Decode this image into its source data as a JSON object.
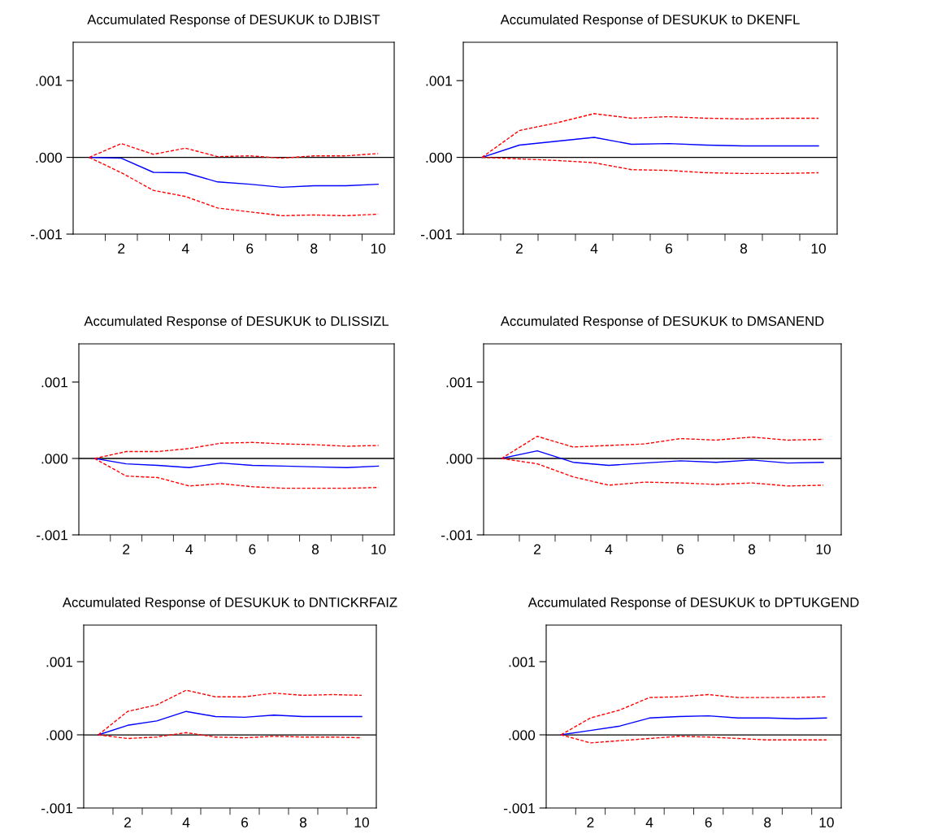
{
  "chart_data": [
    {
      "type": "line",
      "title": "Accumulated Response of DESUKUK to DJBIST",
      "categories": [
        null,
        "2",
        null,
        "4",
        null,
        "6",
        null,
        "8",
        null,
        "10"
      ],
      "ylim": [
        -0.001,
        0.0015
      ],
      "yticks": [
        {
          "value": -0.001,
          "label": "-.001"
        },
        {
          "value": 0,
          "label": ".000"
        },
        {
          "value": 0.001,
          "label": ".001"
        }
      ],
      "ref_lines": [
        {
          "axis": "y",
          "value": 0,
          "color": "#000000"
        }
      ],
      "series": [
        {
          "color": "#0000ff",
          "line_style": "solid",
          "values": [
            0,
            -1e-05,
            -0.000195,
            -0.0002,
            -0.00032,
            -0.00035,
            -0.00039,
            -0.00037,
            -0.00037,
            -0.00035
          ]
        },
        {
          "color": "#ff0000",
          "line_style": "dashed",
          "values": [
            0,
            0.00018,
            4e-05,
            0.00012,
            1e-05,
            2e-05,
            -1e-05,
            2e-05,
            2e-05,
            5e-05
          ]
        },
        {
          "color": "#ff0000",
          "line_style": "dashed",
          "values": [
            0,
            -0.0002,
            -0.00043,
            -0.00051,
            -0.00066,
            -0.00071,
            -0.00076,
            -0.00075,
            -0.00076,
            -0.00074
          ]
        }
      ]
    },
    {
      "type": "line",
      "title": "Accumulated Response of DESUKUK to DKENFL",
      "categories": [
        null,
        "2",
        null,
        "4",
        null,
        "6",
        null,
        "8",
        null,
        "10"
      ],
      "ylim": [
        -0.001,
        0.0015
      ],
      "yticks": [
        {
          "value": -0.001,
          "label": "-.001"
        },
        {
          "value": 0,
          "label": ".000"
        },
        {
          "value": 0.001,
          "label": ".001"
        }
      ],
      "ref_lines": [
        {
          "axis": "y",
          "value": 0,
          "color": "#000000"
        }
      ],
      "series": [
        {
          "color": "#0000ff",
          "line_style": "solid",
          "values": [
            0,
            0.00016,
            0.00021,
            0.00026,
            0.00017,
            0.00018,
            0.00016,
            0.00015,
            0.00015,
            0.00015
          ]
        },
        {
          "color": "#ff0000",
          "line_style": "dashed",
          "values": [
            0,
            0.00035,
            0.00045,
            0.00057,
            0.00051,
            0.00053,
            0.00051,
            0.0005,
            0.00051,
            0.00051
          ]
        },
        {
          "color": "#ff0000",
          "line_style": "dashed",
          "values": [
            0,
            -2e-05,
            -4e-05,
            -7e-05,
            -0.00016,
            -0.00017,
            -0.0002,
            -0.00021,
            -0.00021,
            -0.0002
          ]
        }
      ]
    },
    {
      "type": "line",
      "title": "Accumulated Response of DESUKUK to DLISSIZL",
      "categories": [
        null,
        "2",
        null,
        "4",
        null,
        "6",
        null,
        "8",
        null,
        "10"
      ],
      "ylim": [
        -0.001,
        0.0015
      ],
      "yticks": [
        {
          "value": -0.001,
          "label": "-.001"
        },
        {
          "value": 0,
          "label": ".000"
        },
        {
          "value": 0.001,
          "label": ".001"
        }
      ],
      "ref_lines": [
        {
          "axis": "y",
          "value": 0,
          "color": "#000000"
        }
      ],
      "series": [
        {
          "color": "#0000ff",
          "line_style": "solid",
          "values": [
            0,
            -7e-05,
            -9e-05,
            -0.00012,
            -6e-05,
            -9e-05,
            -0.0001,
            -0.00011,
            -0.00012,
            -0.0001
          ]
        },
        {
          "color": "#ff0000",
          "line_style": "dashed",
          "values": [
            0,
            9e-05,
            9e-05,
            0.00013,
            0.0002,
            0.00021,
            0.00019,
            0.00018,
            0.00016,
            0.00017
          ]
        },
        {
          "color": "#ff0000",
          "line_style": "dashed",
          "values": [
            0,
            -0.00023,
            -0.00025,
            -0.00036,
            -0.00033,
            -0.00037,
            -0.00039,
            -0.00039,
            -0.00039,
            -0.00038
          ]
        }
      ]
    },
    {
      "type": "line",
      "title": "Accumulated Response of DESUKUK to DMSANEND",
      "categories": [
        null,
        "2",
        null,
        "4",
        null,
        "6",
        null,
        "8",
        null,
        "10"
      ],
      "ylim": [
        -0.001,
        0.0015
      ],
      "yticks": [
        {
          "value": -0.001,
          "label": "-.001"
        },
        {
          "value": 0,
          "label": ".000"
        },
        {
          "value": 0.001,
          "label": ".001"
        }
      ],
      "ref_lines": [
        {
          "axis": "y",
          "value": 0,
          "color": "#000000"
        }
      ],
      "series": [
        {
          "color": "#0000ff",
          "line_style": "solid",
          "values": [
            0,
            0.0001,
            -5e-05,
            -9e-05,
            -6e-05,
            -3e-05,
            -5e-05,
            -2e-05,
            -6e-05,
            -5e-05
          ]
        },
        {
          "color": "#ff0000",
          "line_style": "dashed",
          "values": [
            0,
            0.00029,
            0.00015,
            0.00017,
            0.00019,
            0.00026,
            0.00024,
            0.00028,
            0.00024,
            0.00025
          ]
        },
        {
          "color": "#ff0000",
          "line_style": "dashed",
          "values": [
            0,
            -7e-05,
            -0.00024,
            -0.00035,
            -0.00031,
            -0.00032,
            -0.00034,
            -0.00032,
            -0.00036,
            -0.00035
          ]
        }
      ]
    },
    {
      "type": "line",
      "title": "Accumulated Response of DESUKUK to DNTICKRFAIZ",
      "categories": [
        null,
        "2",
        null,
        "4",
        null,
        "6",
        null,
        "8",
        null,
        "10"
      ],
      "ylim": [
        -0.001,
        0.0015
      ],
      "yticks": [
        {
          "value": -0.001,
          "label": "-.001"
        },
        {
          "value": 0,
          "label": ".000"
        },
        {
          "value": 0.001,
          "label": ".001"
        }
      ],
      "ref_lines": [
        {
          "axis": "y",
          "value": 0,
          "color": "#000000"
        }
      ],
      "series": [
        {
          "color": "#0000ff",
          "line_style": "solid",
          "values": [
            0,
            0.00013,
            0.00019,
            0.00032,
            0.00025,
            0.00024,
            0.00027,
            0.00025,
            0.00025,
            0.00025
          ]
        },
        {
          "color": "#ff0000",
          "line_style": "dashed",
          "values": [
            0,
            0.00032,
            0.00041,
            0.00061,
            0.00052,
            0.00052,
            0.00057,
            0.00054,
            0.00055,
            0.00054
          ]
        },
        {
          "color": "#ff0000",
          "line_style": "dashed",
          "values": [
            0,
            -5e-05,
            -3e-05,
            3e-05,
            -3e-05,
            -4e-05,
            -2e-05,
            -3e-05,
            -3e-05,
            -4e-05
          ]
        }
      ]
    },
    {
      "type": "line",
      "title": "Accumulated Response of DESUKUK to DPTUKGEND",
      "categories": [
        null,
        "2",
        null,
        "4",
        null,
        "6",
        null,
        "8",
        null,
        "10"
      ],
      "ylim": [
        -0.001,
        0.0015
      ],
      "yticks": [
        {
          "value": -0.001,
          "label": "-.001"
        },
        {
          "value": 0,
          "label": ".000"
        },
        {
          "value": 0.001,
          "label": ".001"
        }
      ],
      "ref_lines": [
        {
          "axis": "y",
          "value": 0,
          "color": "#000000"
        }
      ],
      "series": [
        {
          "color": "#0000ff",
          "line_style": "solid",
          "values": [
            0,
            6e-05,
            0.00012,
            0.00023,
            0.00025,
            0.00026,
            0.00023,
            0.00023,
            0.00022,
            0.00023
          ]
        },
        {
          "color": "#ff0000",
          "line_style": "dashed",
          "values": [
            0,
            0.00023,
            0.00034,
            0.00051,
            0.00052,
            0.00055,
            0.00051,
            0.00051,
            0.00051,
            0.00052
          ]
        },
        {
          "color": "#ff0000",
          "line_style": "dashed",
          "values": [
            0,
            -0.00011,
            -8e-05,
            -5e-05,
            -2e-05,
            -3e-05,
            -5e-05,
            -7e-05,
            -7e-05,
            -7e-05
          ]
        }
      ]
    }
  ]
}
